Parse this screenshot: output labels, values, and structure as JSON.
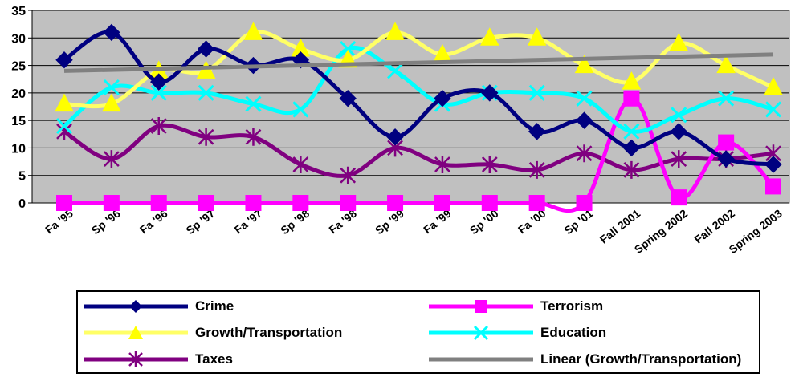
{
  "chart_data": {
    "type": "line",
    "title": "",
    "xlabel": "",
    "ylabel": "",
    "ylim": [
      0,
      35
    ],
    "yticks": [
      0,
      5,
      10,
      15,
      20,
      25,
      30,
      35
    ],
    "grid": true,
    "plot_background": "#c0c0c0",
    "legend_position": "bottom",
    "categories": [
      "Fa '95",
      "Sp '96",
      "Fa '96",
      "Sp '97",
      "Fa '97",
      "Sp '98",
      "Fa '98",
      "Sp '99",
      "Fa '99",
      "Sp '00",
      "Fa '00",
      "Sp '01",
      "Fall 2001",
      "Spring 2002",
      "Fall 2002",
      "Spring 2003"
    ],
    "series": [
      {
        "name": "Crime",
        "color": "#000080",
        "marker": "diamond",
        "values": [
          26,
          31,
          22,
          28,
          25,
          26,
          19,
          12,
          19,
          20,
          13,
          15,
          10,
          13,
          8,
          7
        ]
      },
      {
        "name": "Terrorism",
        "color": "#ff00ff",
        "marker": "square",
        "values": [
          0,
          0,
          0,
          0,
          0,
          0,
          0,
          0,
          0,
          0,
          0,
          0,
          19,
          1,
          11,
          3
        ]
      },
      {
        "name": "Growth/Transportation",
        "color": "#ffff66",
        "marker": "triangle",
        "values": [
          18,
          18,
          24,
          24,
          31,
          28,
          26,
          31,
          27,
          30,
          30,
          25,
          22,
          29,
          25,
          21
        ]
      },
      {
        "name": "Education",
        "color": "#00ffff",
        "marker": "x",
        "values": [
          14,
          21,
          20,
          20,
          18,
          17,
          28,
          24,
          18,
          20,
          20,
          19,
          13,
          16,
          19,
          17
        ]
      },
      {
        "name": "Taxes",
        "color": "#800080",
        "marker": "asterisk",
        "values": [
          13,
          8,
          14,
          12,
          12,
          7,
          5,
          10,
          7,
          7,
          6,
          9,
          6,
          8,
          8,
          9
        ]
      }
    ],
    "trendline": {
      "name": "Linear (Growth/Transportation)",
      "color": "#808080",
      "start": 24,
      "end": 27
    }
  }
}
